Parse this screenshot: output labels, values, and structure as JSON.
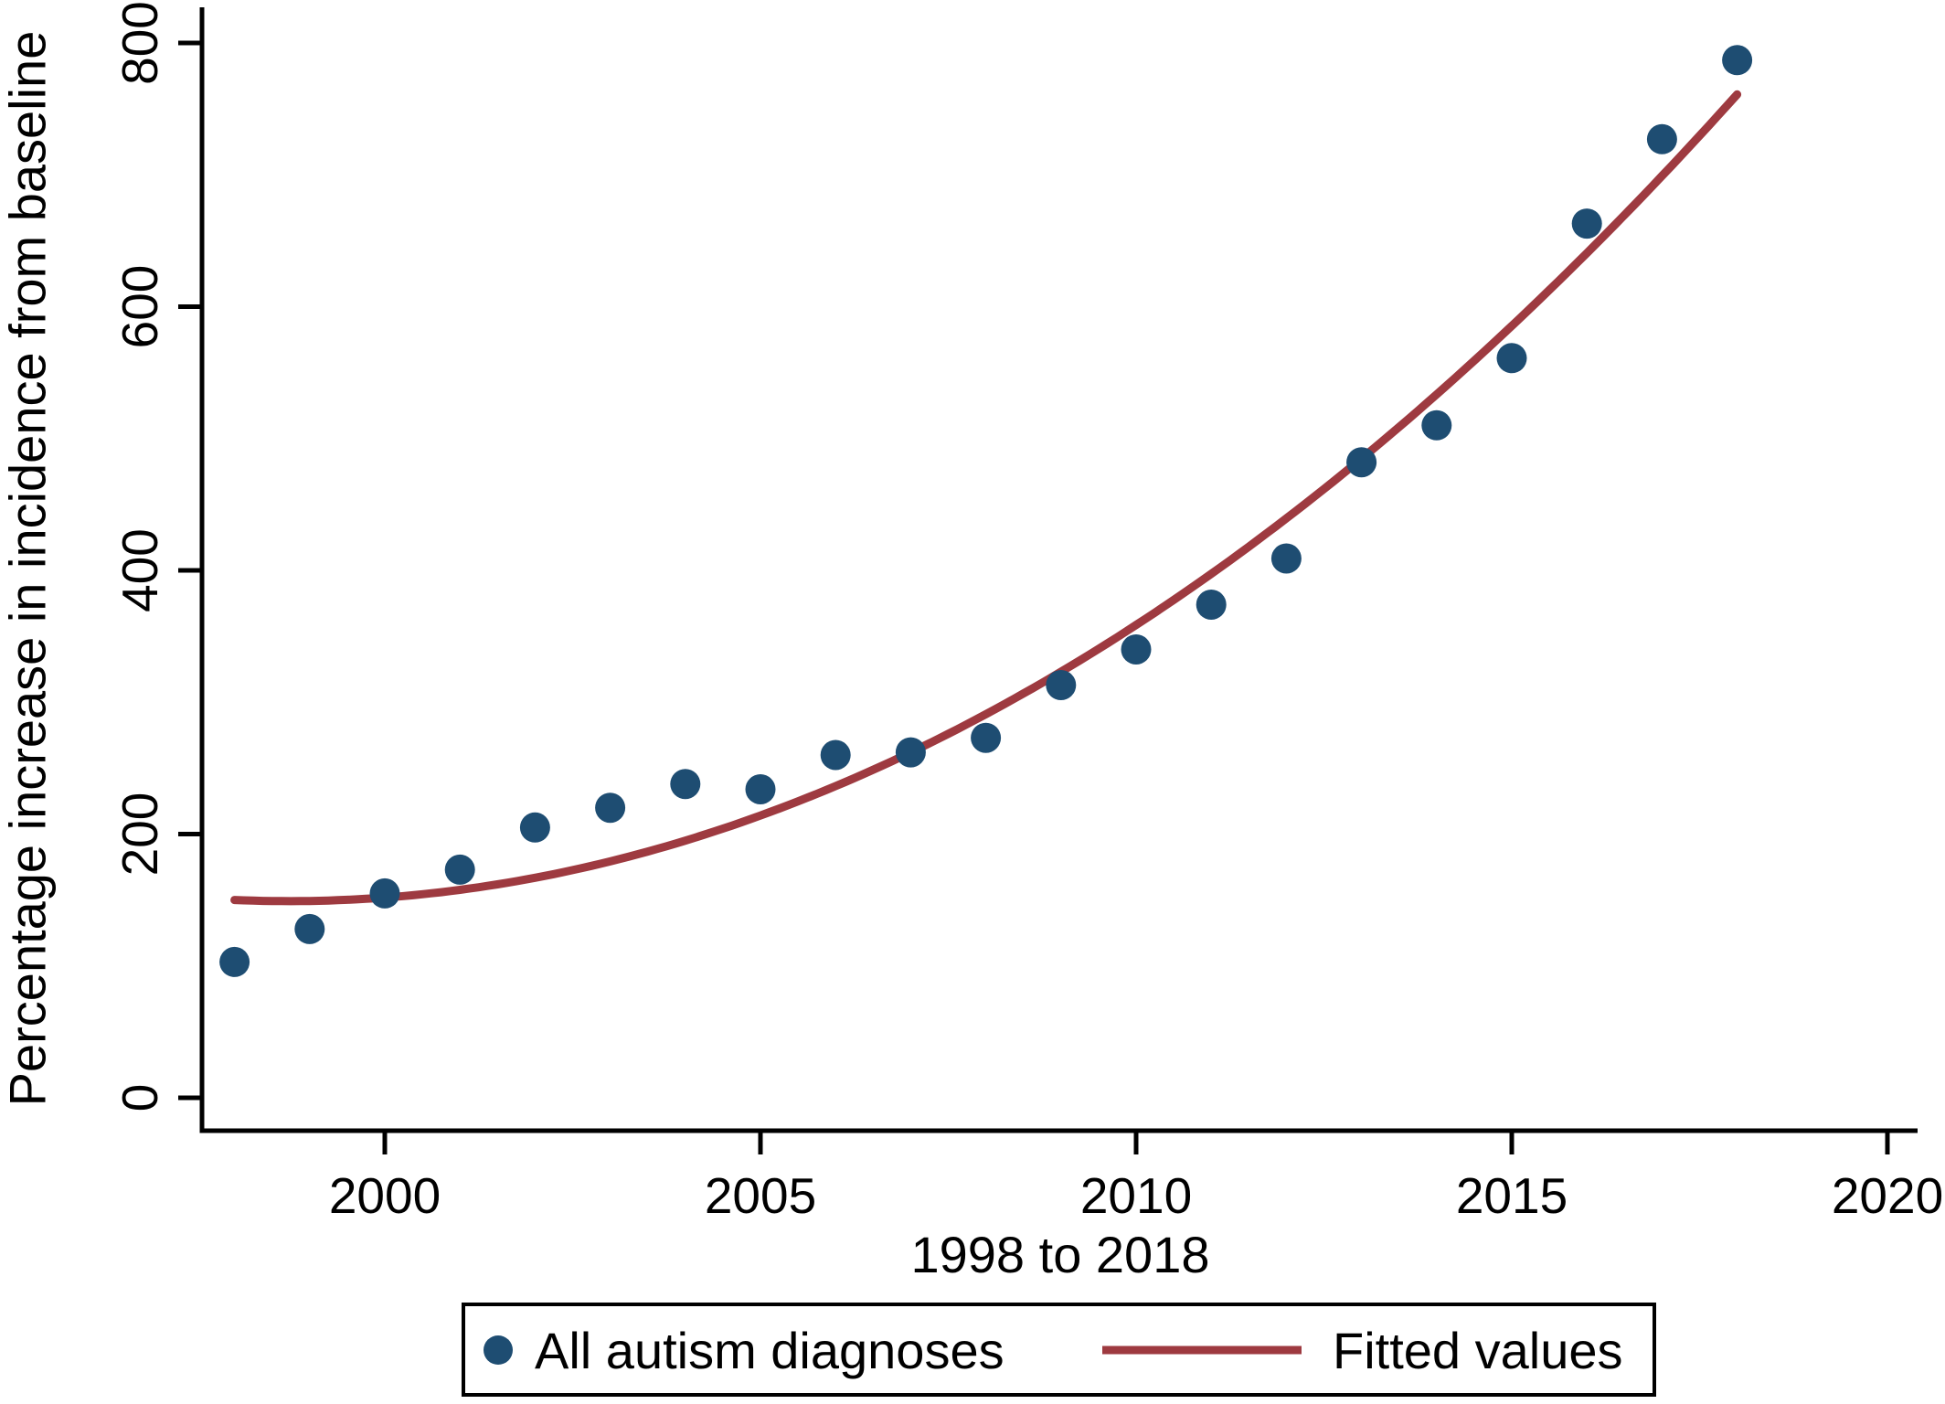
{
  "figure": {
    "y_axis_title": "Percentage increase in incidence from baseline",
    "x_axis_title": "1998 to 2018",
    "legend": {
      "items": [
        {
          "label": "All autism diagnoses",
          "marker": "dot-icon",
          "color": "#1e4d72"
        },
        {
          "label": "Fitted values",
          "marker": "line-icon",
          "color": "#9e3a40"
        }
      ]
    }
  },
  "chart_data": {
    "type": "scatter",
    "title": "",
    "xlabel": "1998 to 2018",
    "ylabel": "Percentage increase in incidence from baseline",
    "x_tick_values": [
      2000,
      2005,
      2010,
      2015,
      2020
    ],
    "x_tick_labels": [
      "2000",
      "2005",
      "2010",
      "2015",
      "2020"
    ],
    "y_tick_values": [
      0,
      200,
      400,
      600,
      800
    ],
    "y_tick_labels": [
      "0",
      "200",
      "400",
      "600",
      "800"
    ],
    "xlim": [
      1997.6,
      2020.4
    ],
    "ylim": [
      0,
      800
    ],
    "grid": false,
    "legend_position": "bottom-outside",
    "series": [
      {
        "name": "All autism diagnoses",
        "type": "scatter",
        "color": "#1e4d72",
        "x": [
          1998,
          1999,
          2000,
          2001,
          2002,
          2003,
          2004,
          2005,
          2006,
          2007,
          2008,
          2009,
          2010,
          2011,
          2012,
          2013,
          2014,
          2015,
          2016,
          2017,
          2018
        ],
        "y": [
          103,
          128,
          155,
          173,
          205,
          220,
          238,
          234,
          260,
          262,
          273,
          313,
          340,
          374,
          409,
          482,
          510,
          561,
          663,
          727,
          787
        ]
      },
      {
        "name": "Fitted values",
        "type": "line",
        "color": "#9e3a40",
        "x": [
          1998,
          1999,
          2000,
          2001,
          2002,
          2003,
          2004,
          2005,
          2006,
          2007,
          2008,
          2009,
          2010,
          2011,
          2012,
          2013,
          2014,
          2015,
          2016,
          2017,
          2018
        ],
        "y": [
          150,
          149,
          152,
          158,
          167,
          179,
          195,
          214,
          236,
          262,
          291,
          323,
          359,
          398,
          440,
          486,
          534,
          587,
          642,
          701,
          763
        ],
        "fit": {
          "form": "quadratic",
          "a": 1.646,
          "b": -2.37,
          "c": 150,
          "t_origin": 1998,
          "x_range": [
            1998,
            2018
          ]
        }
      }
    ]
  }
}
